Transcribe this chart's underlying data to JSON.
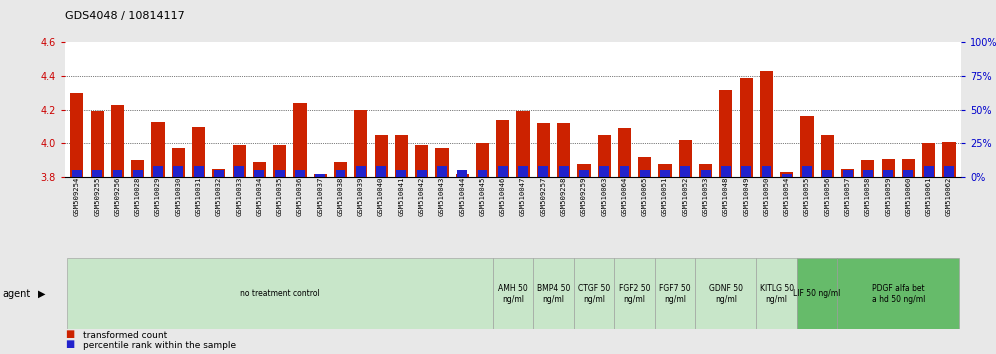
{
  "title": "GDS4048 / 10814117",
  "ylim": [
    3.8,
    4.6
  ],
  "yticks_left": [
    3.8,
    4.0,
    4.2,
    4.4,
    4.6
  ],
  "samples": [
    "GSM509254",
    "GSM509255",
    "GSM509256",
    "GSM510028",
    "GSM510029",
    "GSM510030",
    "GSM510031",
    "GSM510032",
    "GSM510033",
    "GSM510034",
    "GSM510035",
    "GSM510036",
    "GSM510037",
    "GSM510038",
    "GSM510039",
    "GSM510040",
    "GSM510041",
    "GSM510042",
    "GSM510043",
    "GSM510044",
    "GSM510045",
    "GSM510046",
    "GSM510047",
    "GSM509257",
    "GSM509258",
    "GSM509259",
    "GSM510063",
    "GSM510064",
    "GSM510065",
    "GSM510051",
    "GSM510052",
    "GSM510053",
    "GSM510048",
    "GSM510049",
    "GSM510050",
    "GSM510054",
    "GSM510055",
    "GSM510056",
    "GSM510057",
    "GSM510058",
    "GSM510059",
    "GSM510060",
    "GSM510061",
    "GSM510062"
  ],
  "red_values": [
    4.3,
    4.19,
    4.23,
    3.9,
    4.13,
    3.97,
    4.1,
    3.85,
    3.99,
    3.89,
    3.99,
    4.24,
    3.82,
    3.89,
    4.2,
    4.05,
    4.05,
    3.99,
    3.97,
    3.82,
    4.0,
    4.14,
    4.19,
    4.12,
    4.12,
    3.88,
    4.05,
    4.09,
    3.92,
    3.88,
    4.02,
    3.88,
    4.32,
    4.39,
    4.43,
    3.83,
    4.16,
    4.05,
    3.85,
    3.9,
    3.91,
    3.91,
    4.0,
    4.01
  ],
  "blue_values": [
    5,
    5,
    5,
    5,
    8,
    8,
    8,
    5,
    8,
    5,
    5,
    5,
    2,
    5,
    8,
    8,
    5,
    5,
    8,
    5,
    5,
    8,
    8,
    8,
    8,
    5,
    8,
    8,
    5,
    5,
    8,
    5,
    8,
    8,
    8,
    2,
    8,
    5,
    5,
    5,
    5,
    5,
    8,
    8
  ],
  "agent_groups": [
    {
      "label": "no treatment control",
      "start": 0,
      "end": 21,
      "color": "#c8e6c9",
      "lines": 1
    },
    {
      "label": "AMH 50\nng/ml",
      "start": 21,
      "end": 23,
      "color": "#c8e6c9",
      "lines": 2
    },
    {
      "label": "BMP4 50\nng/ml",
      "start": 23,
      "end": 25,
      "color": "#c8e6c9",
      "lines": 2
    },
    {
      "label": "CTGF 50\nng/ml",
      "start": 25,
      "end": 27,
      "color": "#c8e6c9",
      "lines": 2
    },
    {
      "label": "FGF2 50\nng/ml",
      "start": 27,
      "end": 29,
      "color": "#c8e6c9",
      "lines": 2
    },
    {
      "label": "FGF7 50\nng/ml",
      "start": 29,
      "end": 31,
      "color": "#c8e6c9",
      "lines": 2
    },
    {
      "label": "GDNF 50\nng/ml",
      "start": 31,
      "end": 34,
      "color": "#c8e6c9",
      "lines": 2
    },
    {
      "label": "KITLG 50\nng/ml",
      "start": 34,
      "end": 36,
      "color": "#c8e6c9",
      "lines": 2
    },
    {
      "label": "LIF 50 ng/ml",
      "start": 36,
      "end": 38,
      "color": "#66bb6a",
      "lines": 1
    },
    {
      "label": "PDGF alfa bet\na hd 50 ng/ml",
      "start": 38,
      "end": 44,
      "color": "#66bb6a",
      "lines": 2
    }
  ],
  "bar_color_red": "#cc2200",
  "bar_color_blue": "#2222cc",
  "bar_width": 0.65,
  "ybase": 3.8,
  "bg_color": "#e8e8e8",
  "plot_bg": "#ffffff",
  "left_tick_color": "#cc0000",
  "right_tick_color": "#0000cc",
  "legend_red_label": "transformed count",
  "legend_blue_label": "percentile rank within the sample"
}
